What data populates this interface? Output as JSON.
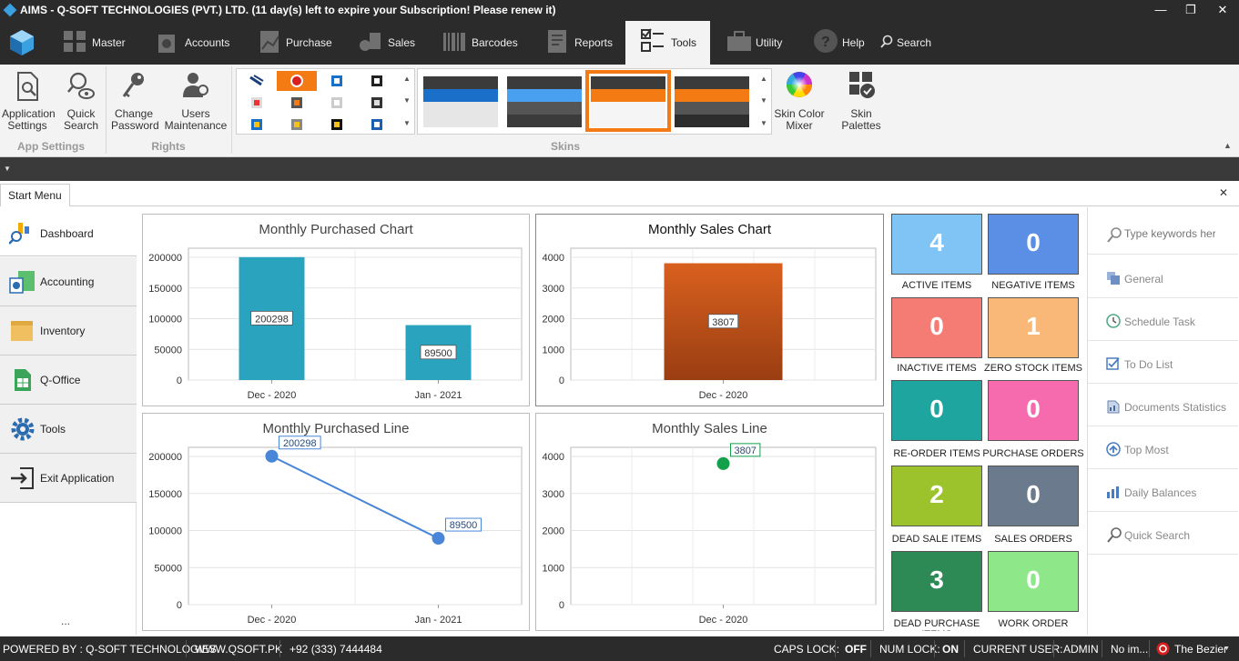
{
  "window": {
    "title": "AIMS - Q-SOFT TECHNOLOGIES (PVT.) LTD. (11 day(s) left to expire your Subscription! Please renew it)"
  },
  "menu": {
    "tabs": [
      {
        "label": "Master"
      },
      {
        "label": "Accounts"
      },
      {
        "label": "Purchase"
      },
      {
        "label": "Sales"
      },
      {
        "label": "Barcodes"
      },
      {
        "label": "Reports"
      },
      {
        "label": "Tools",
        "active": true
      },
      {
        "label": "Utility"
      },
      {
        "label": "Help"
      },
      {
        "label": "Search"
      }
    ]
  },
  "ribbon": {
    "app_settings": {
      "line1": "Application",
      "line2": "Settings"
    },
    "quick_search": {
      "line1": "Quick",
      "line2": "Search"
    },
    "group_app_settings": "App Settings",
    "change_password": {
      "line1": "Change",
      "line2": "Password"
    },
    "users_maintenance": {
      "line1": "Users",
      "line2": "Maintenance"
    },
    "group_rights": "Rights",
    "group_skins": "Skins",
    "skin_color_mixer": {
      "line1": "Skin Color",
      "line2": "Mixer"
    },
    "skin_palettes": "Skin Palettes"
  },
  "tabs": {
    "start_menu": "Start Menu"
  },
  "nav": {
    "items": [
      {
        "label": "Dashboard"
      },
      {
        "label": "Accounting"
      },
      {
        "label": "Inventory"
      },
      {
        "label": "Q-Office"
      },
      {
        "label": "Tools"
      },
      {
        "label": "Exit Application"
      }
    ],
    "more": "..."
  },
  "charts": {
    "purchased_bar": {
      "title": "Monthly Purchased Chart",
      "tick_labels": [
        "200000",
        "150000",
        "100000",
        "50000",
        "0"
      ],
      "cat_labels": [
        "Dec - 2020",
        "Jan - 2021"
      ],
      "data_labels": [
        "200298",
        "89500"
      ]
    },
    "sales_bar": {
      "title": "Monthly Sales Chart",
      "tick_labels": [
        "4000",
        "3000",
        "2000",
        "1000",
        "0"
      ],
      "cat_labels": [
        "Dec - 2020"
      ],
      "data_labels": [
        "3807"
      ]
    },
    "purchased_line": {
      "title": "Monthly Purchased Line",
      "tick_labels": [
        "200000",
        "150000",
        "100000",
        "50000",
        "0"
      ],
      "cat_labels": [
        "Dec - 2020",
        "Jan - 2021"
      ],
      "data_labels": [
        "200298",
        "89500"
      ]
    },
    "sales_line": {
      "title": "Monthly Sales Line",
      "tick_labels": [
        "4000",
        "3000",
        "2000",
        "1000",
        "0"
      ],
      "cat_labels": [
        "Dec - 2020"
      ],
      "data_labels": [
        "3807"
      ]
    }
  },
  "chart_data": [
    {
      "type": "bar",
      "title": "Monthly Purchased Chart",
      "categories": [
        "Dec - 2020",
        "Jan - 2021"
      ],
      "values": [
        200298,
        89500
      ],
      "ylim": [
        0,
        200000
      ],
      "color": "#2aa3bf",
      "grid": true
    },
    {
      "type": "bar",
      "title": "Monthly Sales Chart",
      "categories": [
        "Dec - 2020"
      ],
      "values": [
        3807
      ],
      "ylim": [
        0,
        4000
      ],
      "color": "#c4501a",
      "grid": true
    },
    {
      "type": "line",
      "title": "Monthly Purchased Line",
      "categories": [
        "Dec - 2020",
        "Jan - 2021"
      ],
      "values": [
        200298,
        89500
      ],
      "ylim": [
        0,
        200000
      ],
      "color": "#4a86d8",
      "grid": true
    },
    {
      "type": "line",
      "title": "Monthly Sales Line",
      "categories": [
        "Dec - 2020"
      ],
      "values": [
        3807
      ],
      "ylim": [
        0,
        4000
      ],
      "color": "#13a04a",
      "grid": true
    }
  ],
  "tiles": [
    {
      "value": "4",
      "label": "ACTIVE ITEMS",
      "color": "#7fc4f5"
    },
    {
      "value": "0",
      "label": "NEGATIVE ITEMS",
      "color": "#5b8fe6"
    },
    {
      "value": "0",
      "label": "INACTIVE ITEMS",
      "color": "#f47c74"
    },
    {
      "value": "1",
      "label": "ZERO STOCK ITEMS",
      "color": "#f9b878"
    },
    {
      "value": "0",
      "label": "RE-ORDER ITEMS",
      "color": "#1fa5a0"
    },
    {
      "value": "0",
      "label": "PURCHASE ORDERS",
      "color": "#f56bae"
    },
    {
      "value": "2",
      "label": "DEAD SALE ITEMS",
      "color": "#9cc22c"
    },
    {
      "value": "0",
      "label": "SALES ORDERS",
      "color": "#6b7a8c"
    },
    {
      "value": "3",
      "label": "DEAD PURCHASE ITEMS",
      "color": "#2e8a55"
    },
    {
      "value": "0",
      "label": "WORK ORDER",
      "color": "#8ee88a"
    }
  ],
  "right_panel": {
    "search_placeholder": "Type keywords here",
    "items": [
      {
        "label": "General"
      },
      {
        "label": "Schedule Task"
      },
      {
        "label": "To Do List"
      },
      {
        "label": "Documents Statistics"
      },
      {
        "label": "Top Most"
      },
      {
        "label": "Daily Balances"
      },
      {
        "label": "Quick Search"
      }
    ]
  },
  "status": {
    "powered_by": "POWERED BY : Q-SOFT TECHNOLOGIES",
    "website": "WWW.QSOFT.PK",
    "phone": "+92 (333) 7444484",
    "caps_label": "CAPS LOCK:",
    "caps_value": "OFF",
    "num_label": "NUM LOCK:",
    "num_value": "ON",
    "user_label": "CURRENT USER:",
    "user_value": "ADMIN",
    "no_image": "No im...",
    "skin": "The Bezier"
  }
}
